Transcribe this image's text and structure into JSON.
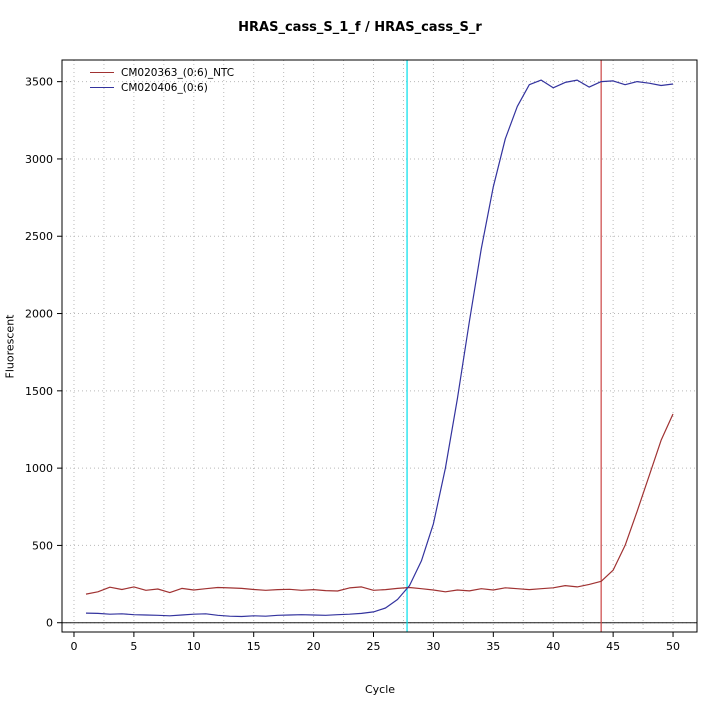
{
  "chart_data": {
    "type": "line",
    "title": "HRAS_cass_S_1_f / HRAS_cass_S_r",
    "xlabel": "Cycle",
    "ylabel": "Fluorescent",
    "xlim": [
      -1,
      52
    ],
    "ylim": [
      -60,
      3640
    ],
    "x_ticks": [
      0,
      5,
      10,
      15,
      20,
      25,
      30,
      35,
      40,
      45,
      50
    ],
    "y_ticks": [
      0,
      500,
      1000,
      1500,
      2000,
      2500,
      3000,
      3500
    ],
    "grid": {
      "x_step": 2.5,
      "y_step": 500,
      "color": "#b9b9b9",
      "style": "dotted"
    },
    "legend_position": "top-left",
    "x": [
      1,
      2,
      3,
      4,
      5,
      6,
      7,
      8,
      9,
      10,
      11,
      12,
      13,
      14,
      15,
      16,
      17,
      18,
      19,
      20,
      21,
      22,
      23,
      24,
      25,
      26,
      27,
      28,
      29,
      30,
      31,
      32,
      33,
      34,
      35,
      36,
      37,
      38,
      39,
      40,
      41,
      42,
      43,
      44,
      45,
      46,
      47,
      48,
      49,
      50
    ],
    "series": [
      {
        "name": "CM020363_(0:6)_NTC",
        "color": "#a03232",
        "values": [
          185,
          200,
          230,
          215,
          232,
          210,
          218,
          195,
          222,
          212,
          220,
          228,
          225,
          222,
          215,
          210,
          214,
          216,
          210,
          214,
          208,
          205,
          225,
          232,
          210,
          214,
          222,
          228,
          220,
          212,
          200,
          212,
          206,
          220,
          212,
          226,
          220,
          214,
          220,
          226,
          240,
          232,
          248,
          268,
          340,
          500,
          720,
          950,
          1180,
          1350
        ]
      },
      {
        "name": "CM020406_(0:6)",
        "color": "#33339e",
        "values": [
          62,
          60,
          55,
          58,
          52,
          50,
          48,
          45,
          50,
          55,
          58,
          48,
          42,
          40,
          45,
          42,
          48,
          50,
          52,
          50,
          48,
          52,
          55,
          60,
          70,
          95,
          150,
          240,
          400,
          640,
          1000,
          1450,
          1950,
          2420,
          2820,
          3130,
          3340,
          3480,
          3510,
          3460,
          3495,
          3510,
          3465,
          3500,
          3505,
          3480,
          3500,
          3490,
          3475,
          3485
        ]
      }
    ],
    "vlines": [
      {
        "x": 27.8,
        "color": "#00e0ea",
        "name": "threshold-cycle-blue"
      },
      {
        "x": 44.0,
        "color": "#cc4444",
        "name": "threshold-cycle-red"
      }
    ],
    "hlines": [
      {
        "y": 0,
        "color": "#1a1a1a",
        "name": "zero-baseline"
      }
    ]
  }
}
